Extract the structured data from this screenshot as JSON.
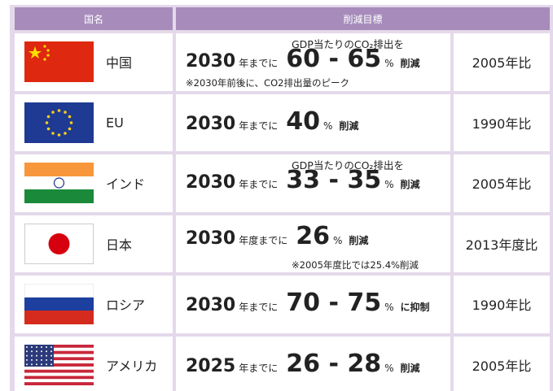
{
  "header": [
    "国名",
    "削減目標"
  ],
  "rows": [
    {
      "country": "中国",
      "year": "2030",
      "deadline": "年までに",
      "target": "60 - 65",
      "unit": "%",
      "action": "削減",
      "note_above": "GDP当たりのCO₂排出を",
      "note_below": "※2030年前後に、CO2排出量のピーク",
      "base": "2005年比"
    },
    {
      "country": "EU",
      "year": "2030",
      "deadline": "年までに",
      "target": "40",
      "unit": "%",
      "action": "削減",
      "base": "1990年比"
    },
    {
      "country": "インド",
      "year": "2030",
      "deadline": "年までに",
      "target": "33 - 35",
      "unit": "%",
      "action": "削減",
      "note_above": "GDP当たりのCO₂排出を",
      "base": "2005年比"
    },
    {
      "country": "日本",
      "year": "2030",
      "deadline": "年度までに",
      "target": "26",
      "unit": "%",
      "action": "削減",
      "note_below": "※2005年度比では25.4%削減",
      "base": "2013年度比"
    },
    {
      "country": "ロシア",
      "year": "2030",
      "deadline": "年までに",
      "target": "70 - 75",
      "unit": "%",
      "action": "に抑制",
      "base": "1990年比"
    },
    {
      "country": "アメリカ",
      "year": "2025",
      "deadline": "年までに",
      "target": "26 - 28",
      "unit": "%",
      "action": "削減",
      "base": "2005年比"
    }
  ]
}
